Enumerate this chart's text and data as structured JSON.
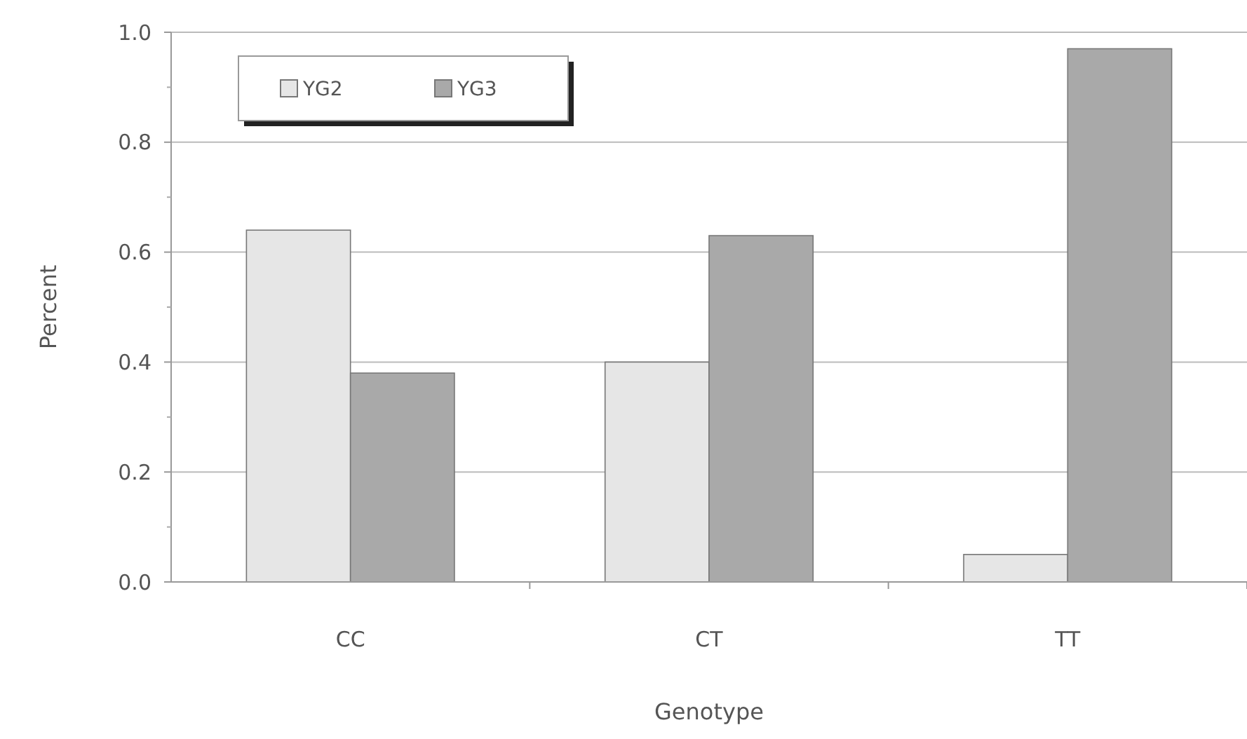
{
  "chart_data": {
    "type": "bar",
    "xlabel": "Genotype",
    "ylabel": "Percent",
    "categories": [
      "CC",
      "CT",
      "TT"
    ],
    "series": [
      {
        "name": "YG2",
        "color": "#e6e6e6",
        "values": [
          0.64,
          0.4,
          0.05
        ]
      },
      {
        "name": "YG3",
        "color": "#a9a9a9",
        "values": [
          0.38,
          0.63,
          0.97
        ]
      }
    ],
    "ylim": [
      0,
      1.0
    ],
    "yticks": [
      {
        "value": 0,
        "label": "0.0"
      },
      {
        "value": 0.2,
        "label": "0.2"
      },
      {
        "value": 0.4,
        "label": "0.4"
      },
      {
        "value": 0.6,
        "label": "0.6"
      },
      {
        "value": 0.8,
        "label": "0.8"
      },
      {
        "value": 1.0,
        "label": "1.0"
      }
    ],
    "grid": "y",
    "legend": "top left"
  }
}
